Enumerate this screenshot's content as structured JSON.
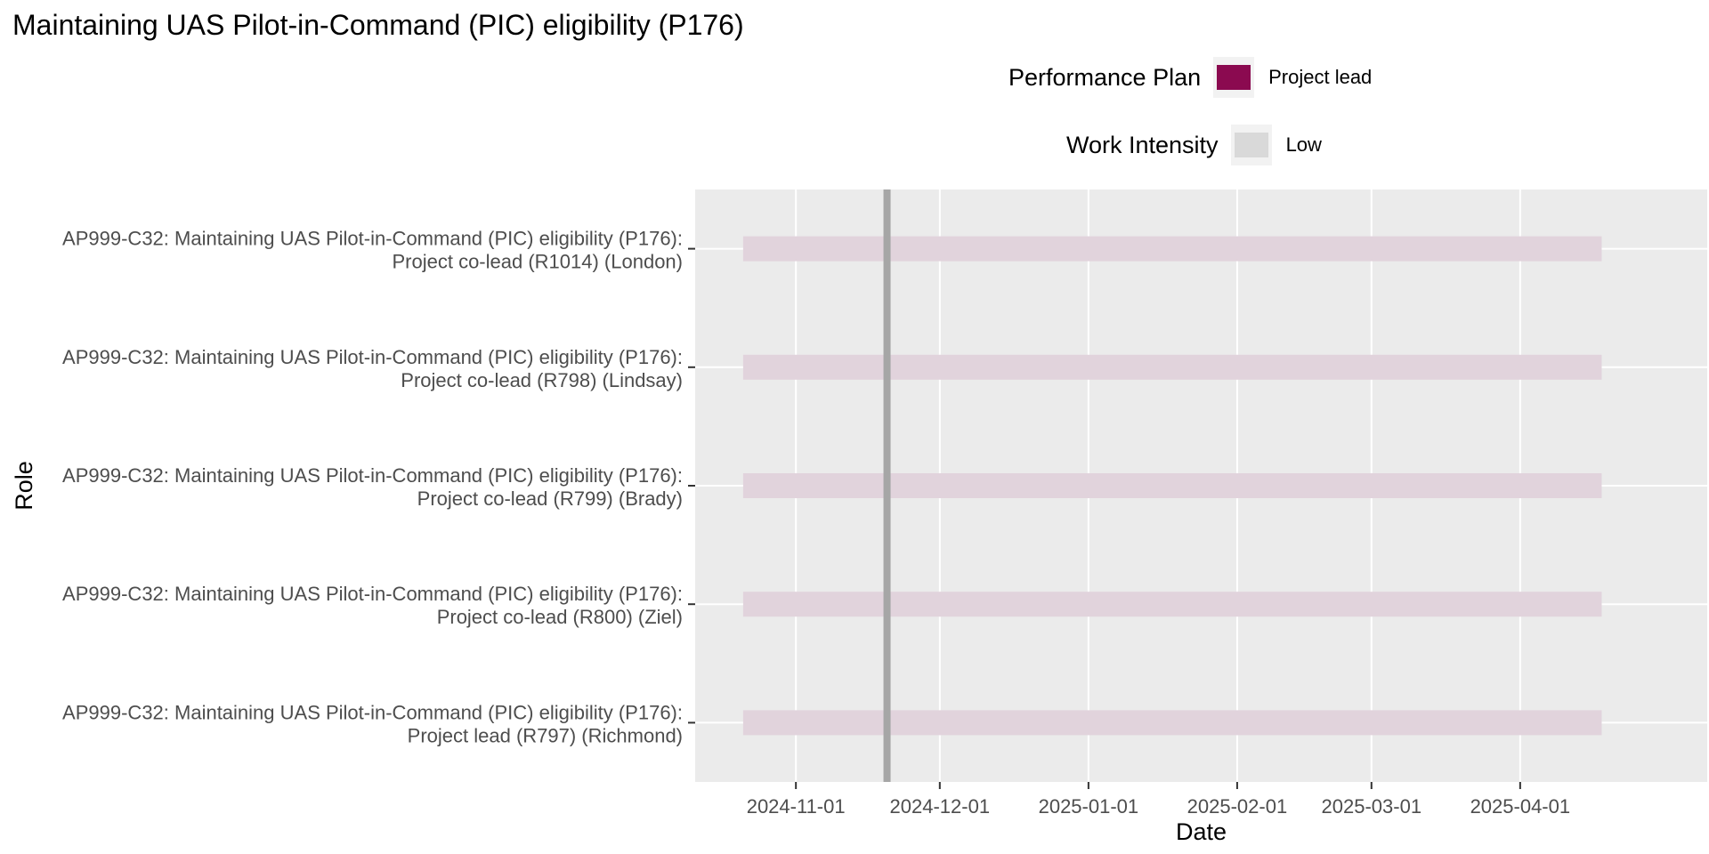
{
  "chart_data": {
    "type": "gantt",
    "title": "Maintaining UAS Pilot-in-Command (PIC) eligibility (P176)",
    "xlabel": "Date",
    "ylabel": "Role",
    "x_ticks": [
      "2024-11-01",
      "2024-12-01",
      "2025-01-01",
      "2025-02-01",
      "2025-03-01",
      "2025-04-01"
    ],
    "xlim": [
      "2024-10-11",
      "2025-05-10"
    ],
    "reference_line": "2024-11-20",
    "legends": [
      {
        "title": "Performance Plan",
        "items": [
          {
            "label": "Project lead",
            "color": "#8b0a50"
          }
        ]
      },
      {
        "title": "Work Intensity",
        "items": [
          {
            "label": "Low",
            "color": "#d9d9d9"
          }
        ]
      }
    ],
    "rows": [
      {
        "label_line1": "AP999-C32: Maintaining UAS Pilot-in-Command (PIC) eligibility (P176):",
        "label_line2": "Project co-lead (R1014) (London)",
        "start": "2024-10-21",
        "end": "2025-04-18"
      },
      {
        "label_line1": "AP999-C32: Maintaining UAS Pilot-in-Command (PIC) eligibility (P176):",
        "label_line2": "Project co-lead (R798) (Lindsay)",
        "start": "2024-10-21",
        "end": "2025-04-18"
      },
      {
        "label_line1": "AP999-C32: Maintaining UAS Pilot-in-Command (PIC) eligibility (P176):",
        "label_line2": "Project co-lead (R799) (Brady)",
        "start": "2024-10-21",
        "end": "2025-04-18"
      },
      {
        "label_line1": "AP999-C32: Maintaining UAS Pilot-in-Command (PIC) eligibility (P176):",
        "label_line2": "Project co-lead (R800) (Ziel)",
        "start": "2024-10-21",
        "end": "2025-04-18"
      },
      {
        "label_line1": "AP999-C32: Maintaining UAS Pilot-in-Command (PIC) eligibility (P176):",
        "label_line2": "Project lead (R797) (Richmond)",
        "start": "2024-10-21",
        "end": "2025-04-18"
      }
    ],
    "colors": {
      "panel": "#ebebeb",
      "gridline": "#ffffff",
      "bar": "#e1d3dc",
      "reference_line": "#a6a6a6"
    }
  }
}
